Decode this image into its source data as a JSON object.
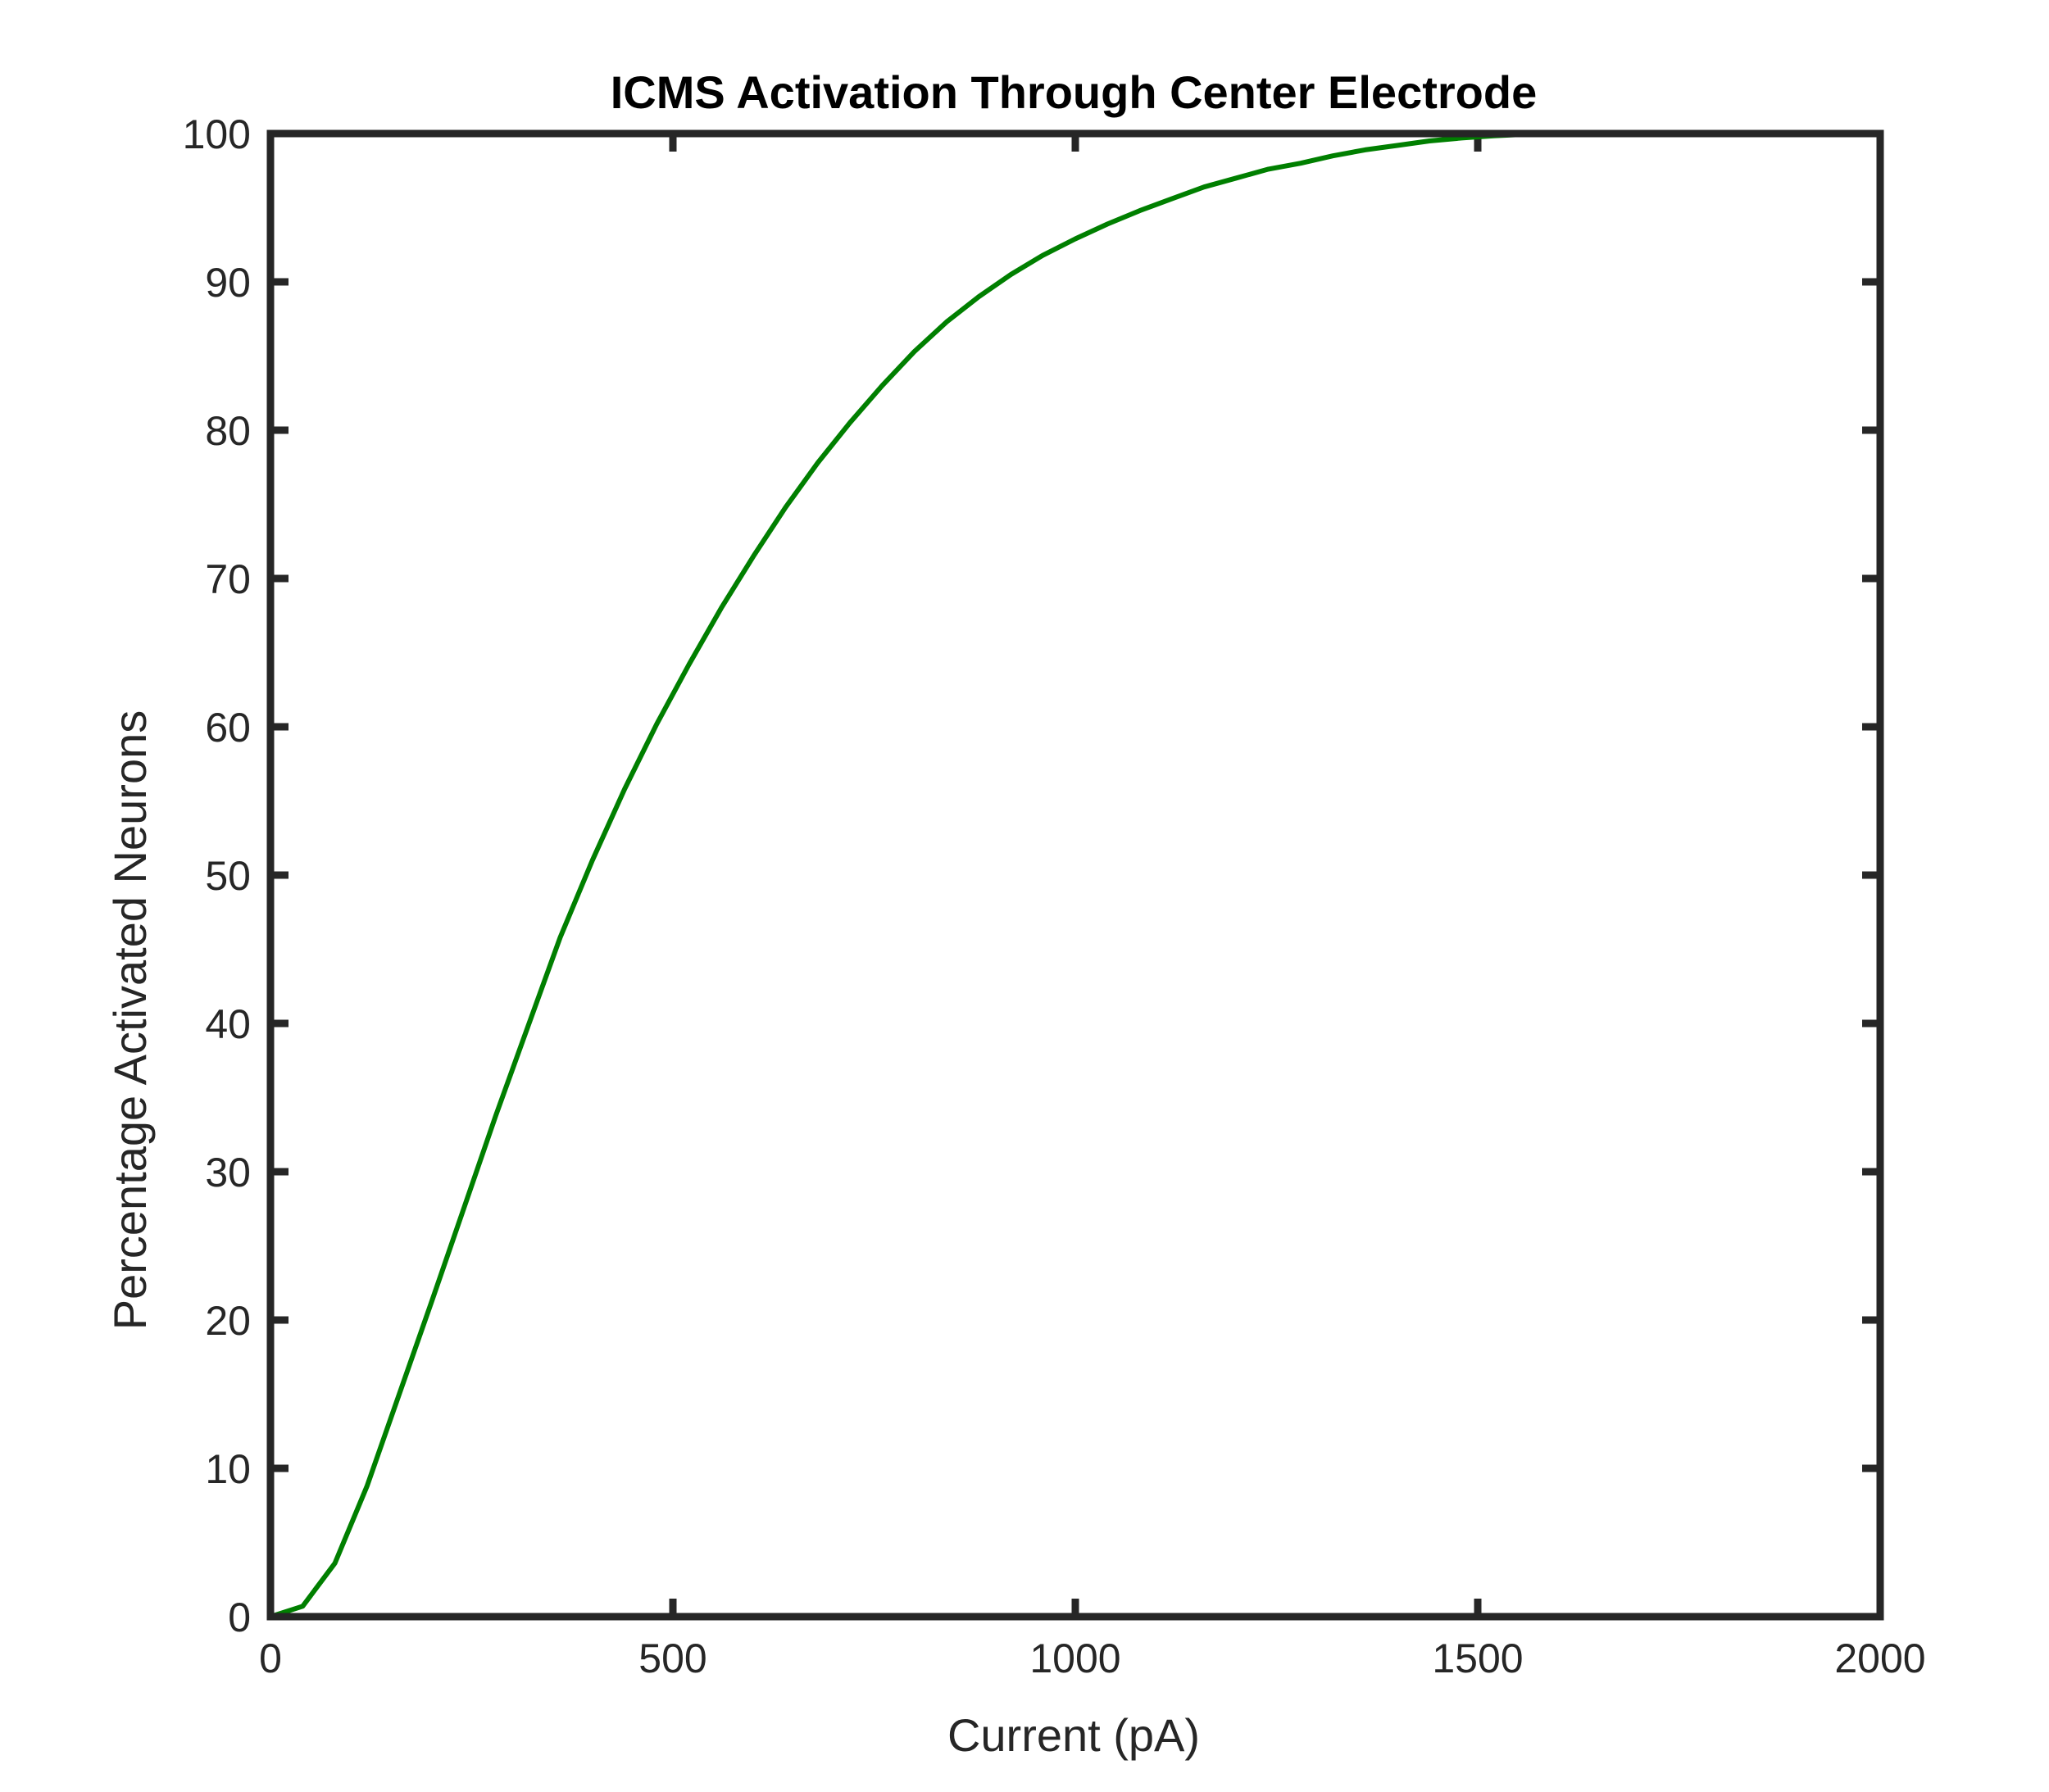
{
  "chart_data": {
    "type": "line",
    "title": "ICMS Activation Through Center Electrode",
    "xlabel": "Current (pA)",
    "ylabel": "Percentage Activated Neurons",
    "xlim": [
      0,
      2000
    ],
    "ylim": [
      0,
      100
    ],
    "xticks": [
      "0",
      "500",
      "1000",
      "1500",
      "2000"
    ],
    "yticks": [
      "0",
      "10",
      "20",
      "30",
      "40",
      "50",
      "60",
      "70",
      "80",
      "90",
      "100"
    ],
    "grid": false,
    "line_color": "#007f00",
    "series": [
      {
        "x": [
          0,
          40,
          80,
          120,
          160,
          200,
          240,
          280,
          320,
          360,
          400,
          440,
          480,
          520,
          560,
          600,
          640,
          680,
          720,
          760,
          800,
          840,
          880,
          920,
          960,
          1000,
          1040,
          1080,
          1120,
          1160,
          1200,
          1240,
          1280,
          1320,
          1360,
          1400,
          1440,
          1480,
          1520,
          1560,
          1600,
          1640
        ],
        "y": [
          0,
          0.7,
          3.6,
          8.8,
          15.0,
          21.2,
          27.5,
          33.8,
          39.8,
          45.8,
          51.0,
          55.8,
          60.2,
          64.2,
          68.0,
          71.5,
          74.8,
          77.8,
          80.5,
          83.0,
          85.3,
          87.3,
          89.0,
          90.5,
          91.8,
          92.9,
          93.9,
          94.8,
          95.6,
          96.4,
          97.0,
          97.6,
          98.0,
          98.5,
          98.9,
          99.2,
          99.5,
          99.7,
          99.85,
          99.95,
          100,
          100
        ]
      }
    ]
  }
}
